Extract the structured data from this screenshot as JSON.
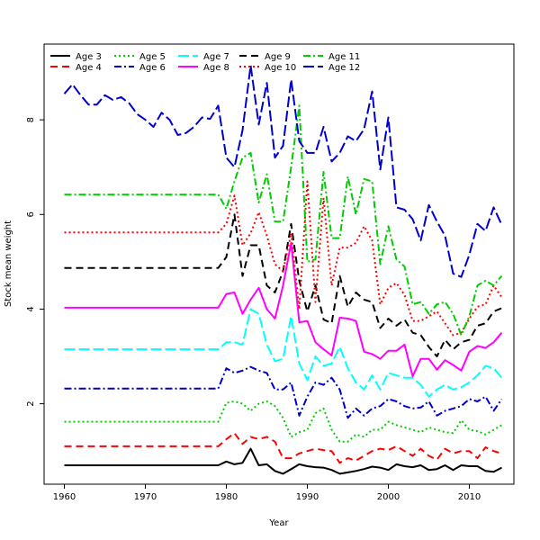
{
  "chart_data": {
    "type": "line",
    "title": "",
    "xlabel": "Year",
    "ylabel": "Stock mean weight",
    "xlim": [
      1957.5,
      2015.5
    ],
    "ylim": [
      0.3,
      9.6
    ],
    "x_ticks": [
      1960,
      1970,
      1980,
      1990,
      2000,
      2010
    ],
    "y_ticks": [
      2,
      4,
      6,
      8
    ],
    "legend_position": "top-left",
    "x": [
      1960,
      1961,
      1962,
      1963,
      1964,
      1965,
      1966,
      1967,
      1968,
      1969,
      1970,
      1971,
      1972,
      1973,
      1974,
      1975,
      1976,
      1977,
      1978,
      1979,
      1980,
      1981,
      1982,
      1983,
      1984,
      1985,
      1986,
      1987,
      1988,
      1989,
      1990,
      1991,
      1992,
      1993,
      1994,
      1995,
      1996,
      1997,
      1998,
      1999,
      2000,
      2001,
      2002,
      2003,
      2004,
      2005,
      2006,
      2007,
      2008,
      2009,
      2010,
      2011,
      2012,
      2013,
      2014
    ],
    "series": [
      {
        "name": "Age 3",
        "color": "#000000",
        "dash": "solid",
        "values": [
          0.7,
          0.7,
          0.7,
          0.7,
          0.7,
          0.7,
          0.7,
          0.7,
          0.7,
          0.7,
          0.7,
          0.7,
          0.7,
          0.7,
          0.7,
          0.7,
          0.7,
          0.7,
          0.7,
          0.7,
          0.78,
          0.72,
          0.75,
          1.05,
          0.7,
          0.72,
          0.58,
          0.52,
          0.62,
          0.72,
          0.68,
          0.66,
          0.65,
          0.6,
          0.52,
          0.55,
          0.58,
          0.62,
          0.67,
          0.65,
          0.6,
          0.72,
          0.68,
          0.66,
          0.7,
          0.6,
          0.62,
          0.7,
          0.6,
          0.7,
          0.68,
          0.68,
          0.58,
          0.56,
          0.65
        ]
      },
      {
        "name": "Age 4",
        "color": "#ff0000",
        "dash": "8,5",
        "values": [
          1.1,
          1.1,
          1.1,
          1.1,
          1.1,
          1.1,
          1.1,
          1.1,
          1.1,
          1.1,
          1.1,
          1.1,
          1.1,
          1.1,
          1.1,
          1.1,
          1.1,
          1.1,
          1.1,
          1.1,
          1.25,
          1.38,
          1.15,
          1.3,
          1.25,
          1.3,
          1.2,
          0.85,
          0.85,
          0.95,
          1.0,
          1.05,
          1.02,
          1.0,
          0.75,
          0.85,
          0.8,
          0.9,
          1.0,
          1.05,
          1.02,
          1.1,
          1.0,
          0.9,
          1.05,
          0.9,
          0.82,
          1.05,
          0.95,
          1.0,
          1.0,
          0.85,
          1.08,
          1.0,
          0.95
        ]
      },
      {
        "name": "Age 5",
        "color": "#00cd00",
        "dash": "2,3",
        "values": [
          1.62,
          1.62,
          1.62,
          1.62,
          1.62,
          1.62,
          1.62,
          1.62,
          1.62,
          1.62,
          1.62,
          1.62,
          1.62,
          1.62,
          1.62,
          1.62,
          1.62,
          1.62,
          1.62,
          1.62,
          2.02,
          2.05,
          2.0,
          1.85,
          2.0,
          2.05,
          1.95,
          1.7,
          1.3,
          1.4,
          1.45,
          1.8,
          1.9,
          1.45,
          1.2,
          1.2,
          1.35,
          1.3,
          1.45,
          1.45,
          1.62,
          1.55,
          1.5,
          1.45,
          1.4,
          1.5,
          1.45,
          1.4,
          1.38,
          1.65,
          1.45,
          1.42,
          1.35,
          1.45,
          1.55
        ]
      },
      {
        "name": "Age 6",
        "color": "#0000cd",
        "dash": "8,3,2,3",
        "values": [
          2.32,
          2.32,
          2.32,
          2.32,
          2.32,
          2.32,
          2.32,
          2.32,
          2.32,
          2.32,
          2.32,
          2.32,
          2.32,
          2.32,
          2.32,
          2.32,
          2.32,
          2.32,
          2.32,
          2.32,
          2.75,
          2.65,
          2.7,
          2.78,
          2.7,
          2.65,
          2.3,
          2.3,
          2.45,
          1.75,
          2.15,
          2.45,
          2.4,
          2.55,
          2.3,
          1.7,
          1.9,
          1.75,
          1.9,
          1.95,
          2.1,
          2.05,
          1.95,
          1.9,
          1.92,
          2.05,
          1.75,
          1.85,
          1.9,
          1.95,
          2.1,
          2.05,
          2.15,
          1.85,
          2.1
        ]
      },
      {
        "name": "Age 7",
        "color": "#00ffff",
        "dash": "12,4",
        "values": [
          3.15,
          3.15,
          3.15,
          3.15,
          3.15,
          3.15,
          3.15,
          3.15,
          3.15,
          3.15,
          3.15,
          3.15,
          3.15,
          3.15,
          3.15,
          3.15,
          3.15,
          3.15,
          3.15,
          3.15,
          3.3,
          3.3,
          3.25,
          4.0,
          3.9,
          3.25,
          2.9,
          2.95,
          3.85,
          2.85,
          2.5,
          3.0,
          2.8,
          2.85,
          3.2,
          2.75,
          2.45,
          2.3,
          2.6,
          2.3,
          2.65,
          2.6,
          2.55,
          2.55,
          2.4,
          2.15,
          2.3,
          2.4,
          2.3,
          2.35,
          2.45,
          2.6,
          2.8,
          2.75,
          2.55
        ]
      },
      {
        "name": "Age 8",
        "color": "#ff00ff",
        "dash": "solid",
        "values": [
          4.03,
          4.03,
          4.03,
          4.03,
          4.03,
          4.03,
          4.03,
          4.03,
          4.03,
          4.03,
          4.03,
          4.03,
          4.03,
          4.03,
          4.03,
          4.03,
          4.03,
          4.03,
          4.03,
          4.03,
          4.32,
          4.35,
          3.9,
          4.2,
          4.45,
          4.0,
          3.8,
          4.5,
          5.4,
          3.72,
          3.75,
          3.3,
          3.15,
          3.02,
          3.82,
          3.8,
          3.75,
          3.1,
          3.05,
          2.95,
          3.12,
          3.12,
          3.25,
          2.58,
          2.95,
          2.95,
          2.72,
          2.92,
          2.82,
          2.7,
          3.1,
          3.22,
          3.18,
          3.3,
          3.5
        ]
      },
      {
        "name": "Age 9",
        "color": "#000000",
        "dash": "8,5",
        "values": [
          4.87,
          4.87,
          4.87,
          4.87,
          4.87,
          4.87,
          4.87,
          4.87,
          4.87,
          4.87,
          4.87,
          4.87,
          4.87,
          4.87,
          4.87,
          4.87,
          4.87,
          4.87,
          4.87,
          4.87,
          5.1,
          6.0,
          4.7,
          5.35,
          5.35,
          4.5,
          4.35,
          4.8,
          5.8,
          4.6,
          3.95,
          4.5,
          3.78,
          3.7,
          4.7,
          4.05,
          4.35,
          4.2,
          4.15,
          3.6,
          3.8,
          3.65,
          3.78,
          3.5,
          3.45,
          3.2,
          3.0,
          3.35,
          3.15,
          3.3,
          3.35,
          3.65,
          3.7,
          3.95,
          4.02
        ]
      },
      {
        "name": "Age 10",
        "color": "#ff0000",
        "dash": "2,3",
        "values": [
          5.62,
          5.62,
          5.62,
          5.62,
          5.62,
          5.62,
          5.62,
          5.62,
          5.62,
          5.62,
          5.62,
          5.62,
          5.62,
          5.62,
          5.62,
          5.62,
          5.62,
          5.62,
          5.62,
          5.62,
          5.8,
          6.4,
          5.35,
          5.6,
          6.05,
          5.55,
          4.95,
          4.8,
          5.6,
          4.0,
          6.7,
          4.15,
          6.35,
          4.5,
          5.3,
          5.3,
          5.4,
          5.75,
          5.45,
          4.1,
          4.45,
          4.55,
          4.3,
          3.75,
          3.75,
          3.85,
          3.95,
          3.7,
          3.45,
          3.5,
          3.8,
          4.05,
          4.1,
          4.5,
          4.25
        ]
      },
      {
        "name": "Age 11",
        "color": "#00cd00",
        "dash": "8,3,2,3",
        "values": [
          6.42,
          6.42,
          6.42,
          6.42,
          6.42,
          6.42,
          6.42,
          6.42,
          6.42,
          6.42,
          6.42,
          6.42,
          6.42,
          6.42,
          6.42,
          6.42,
          6.42,
          6.42,
          6.42,
          6.42,
          6.12,
          6.7,
          7.2,
          7.3,
          6.25,
          6.85,
          5.85,
          5.85,
          7.0,
          8.3,
          5.0,
          5.05,
          6.9,
          5.5,
          5.5,
          6.8,
          6.0,
          6.75,
          6.7,
          4.95,
          5.75,
          5.05,
          4.9,
          4.1,
          4.15,
          3.9,
          4.1,
          4.15,
          3.9,
          3.45,
          3.85,
          4.5,
          4.6,
          4.5,
          4.7
        ]
      },
      {
        "name": "Age 12",
        "color": "#0000cd",
        "dash": "12,4",
        "values": [
          8.55,
          8.75,
          8.52,
          8.32,
          8.32,
          8.52,
          8.42,
          8.48,
          8.35,
          8.12,
          8.0,
          7.85,
          8.15,
          8.0,
          7.68,
          7.72,
          7.85,
          8.05,
          8.02,
          8.3,
          7.2,
          7.0,
          7.78,
          9.15,
          7.9,
          8.78,
          7.2,
          7.45,
          8.85,
          7.55,
          7.3,
          7.3,
          7.85,
          7.12,
          7.3,
          7.65,
          7.55,
          7.8,
          8.6,
          6.95,
          8.05,
          6.15,
          6.1,
          5.9,
          5.45,
          6.2,
          5.85,
          5.55,
          4.75,
          4.68,
          5.15,
          5.8,
          5.65,
          6.15,
          5.78
        ]
      }
    ]
  }
}
